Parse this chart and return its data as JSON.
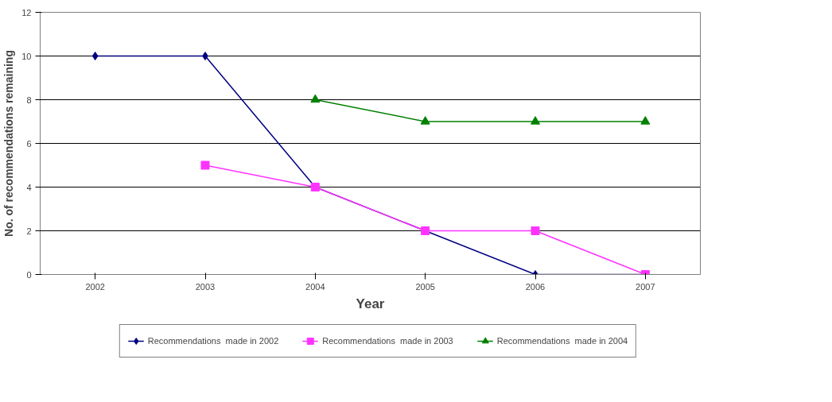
{
  "chart_data": {
    "type": "line",
    "xlabel": "Year",
    "ylabel": "No. of recommendations remaining",
    "categories": [
      "2002",
      "2003",
      "2004",
      "2005",
      "2006",
      "2007"
    ],
    "series": [
      {
        "name": "Recommendations  made in 2002",
        "color": "#000080",
        "marker": "diamond",
        "values": [
          10,
          10,
          4,
          2,
          0,
          0
        ]
      },
      {
        "name": "Recommendations  made in 2003",
        "color": "#ff33ff",
        "marker": "square",
        "values": [
          null,
          5,
          4,
          2,
          2,
          0
        ]
      },
      {
        "name": "Recommendations  made in 2004",
        "color": "#008000",
        "marker": "triangle",
        "values": [
          null,
          null,
          8,
          7,
          7,
          7
        ]
      }
    ],
    "ylim": [
      0,
      12
    ],
    "yticks": [
      0,
      2,
      4,
      6,
      8,
      10,
      12
    ],
    "grid": "y",
    "legend": "bottom"
  }
}
